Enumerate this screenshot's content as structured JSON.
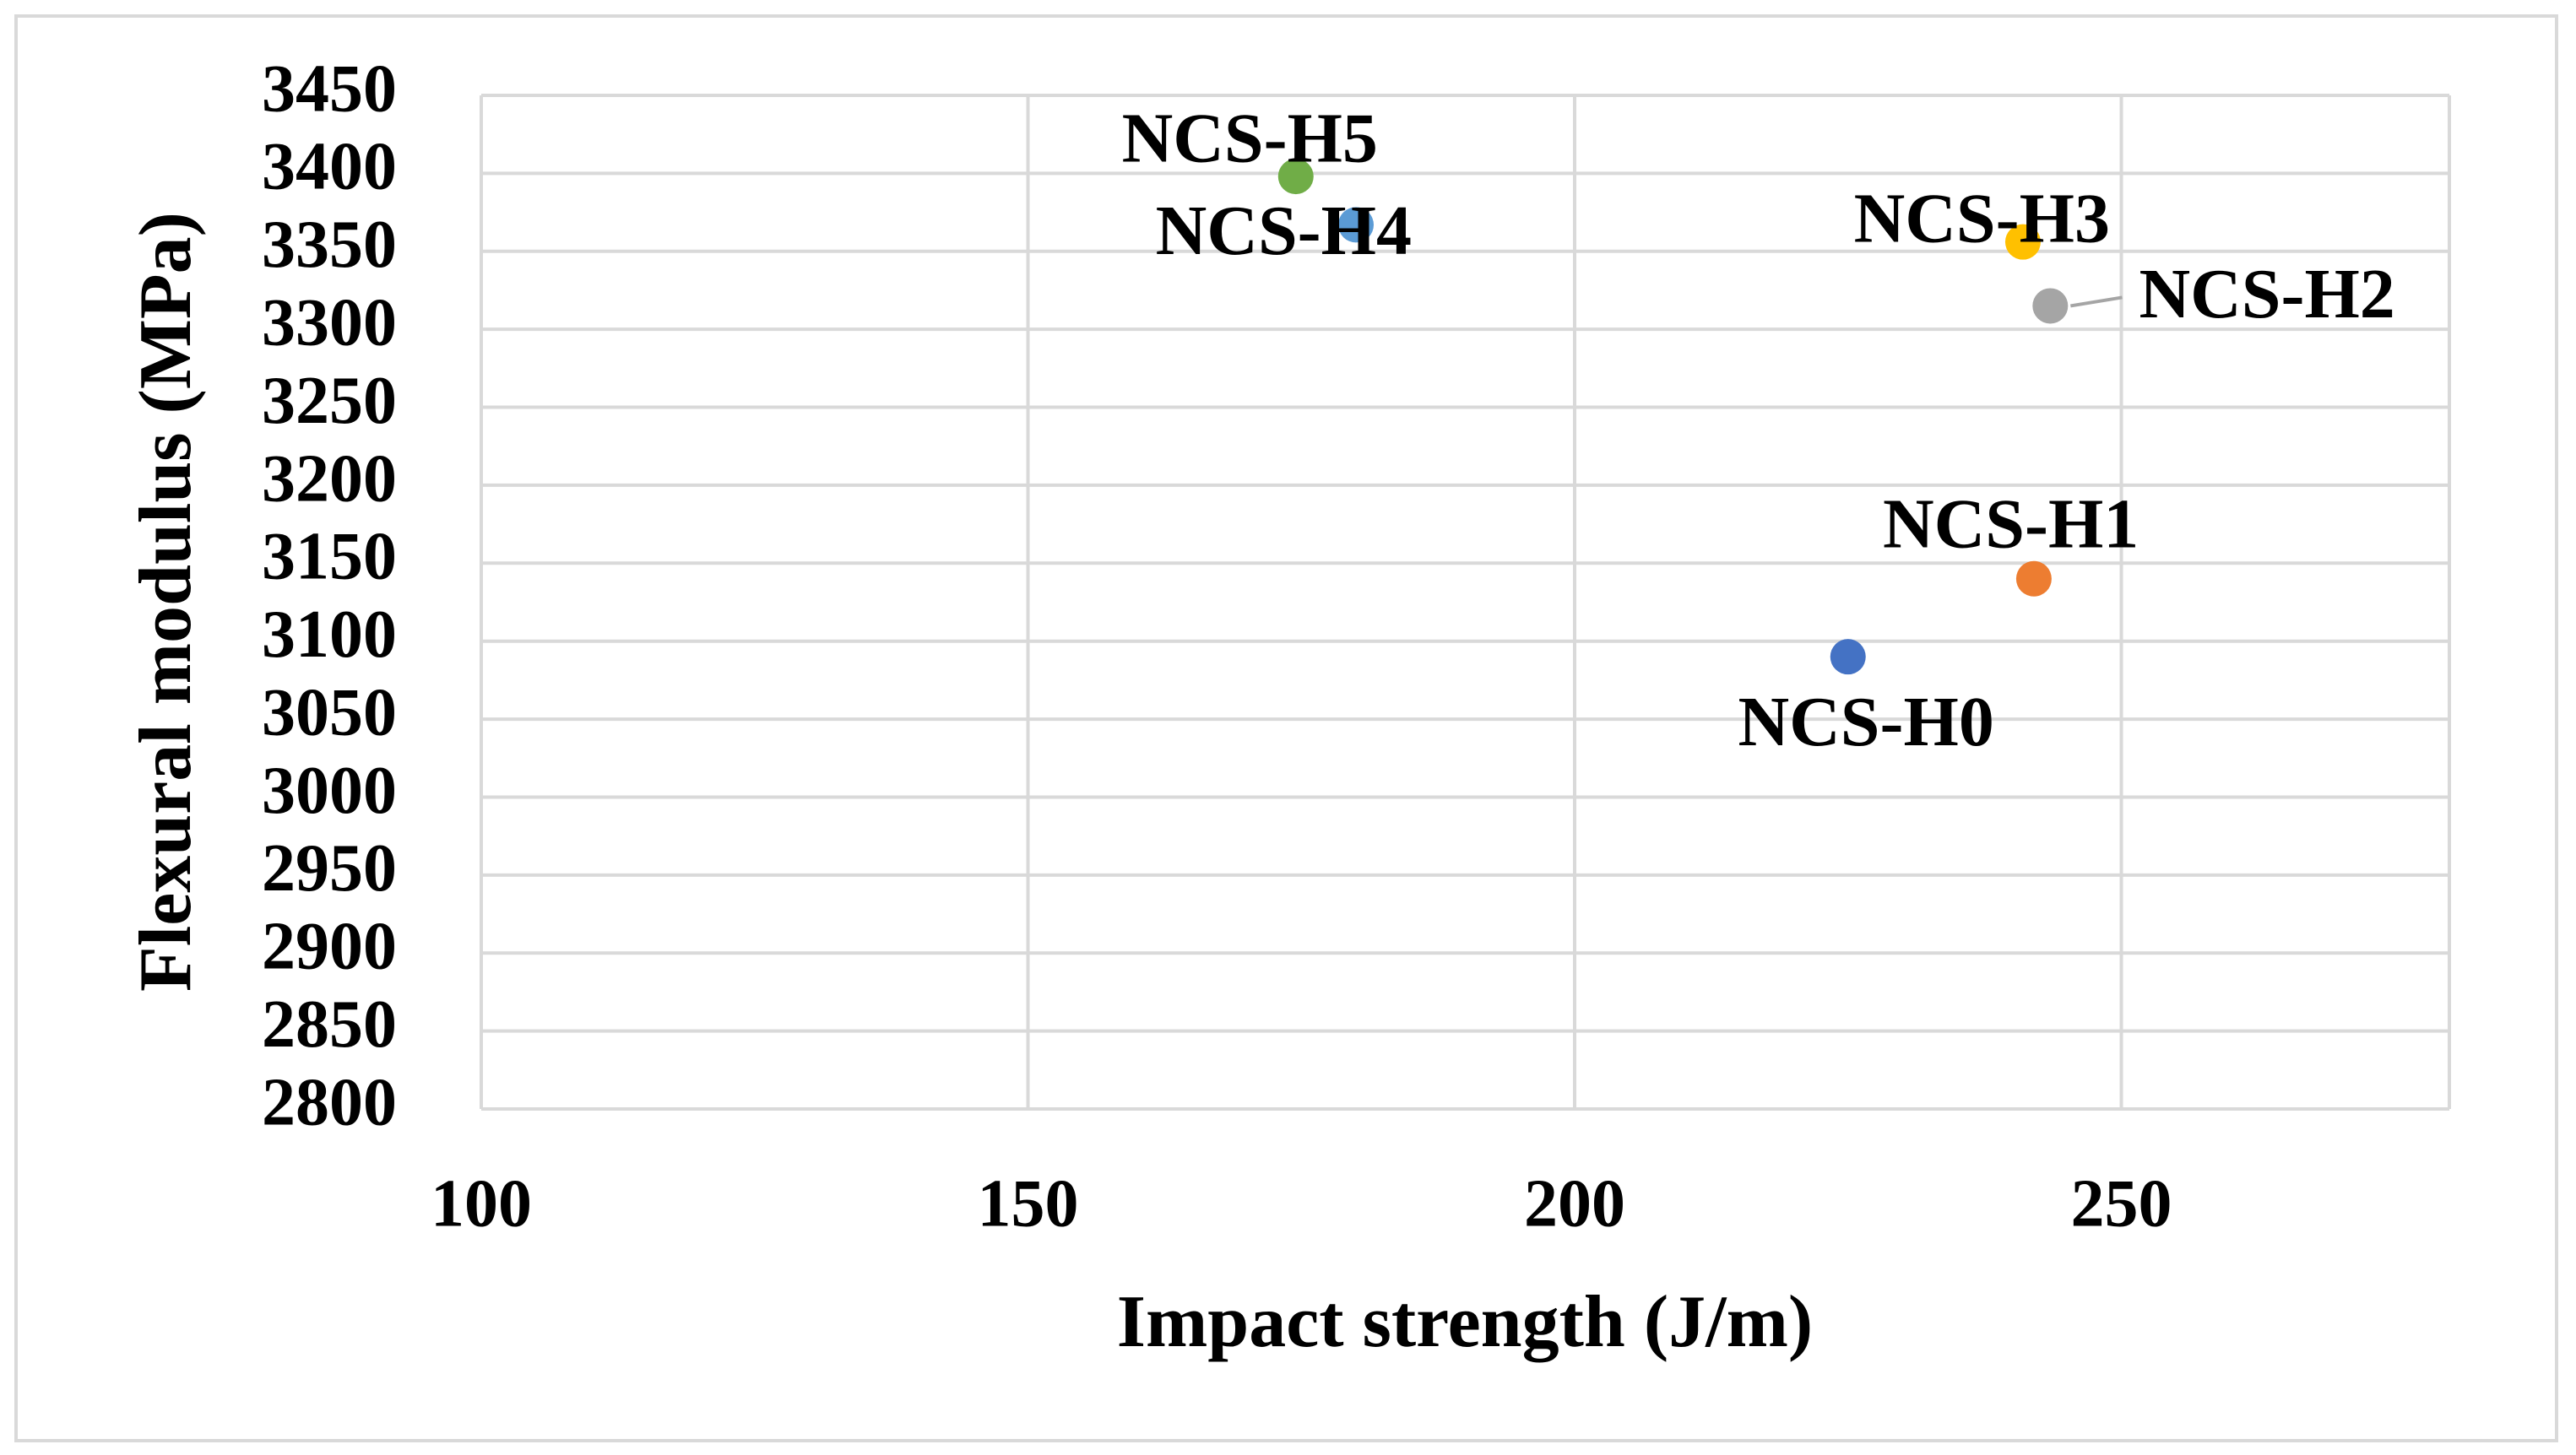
{
  "chart_data": {
    "type": "scatter",
    "x_label": "Impact strength (J/m)",
    "y_label": "Flexural modulus (MPa)",
    "xlim": [
      100,
      280
    ],
    "xticks": [
      100,
      150,
      200,
      250
    ],
    "ylim": [
      2800,
      3450
    ],
    "yticks": [
      2800,
      2850,
      2900,
      2950,
      3000,
      3050,
      3100,
      3150,
      3200,
      3250,
      3300,
      3350,
      3400,
      3450
    ],
    "grid": true,
    "series": [
      {
        "name": "NCS-H0",
        "color": "#4472c4",
        "x": [
          225
        ],
        "values": [
          3090
        ]
      },
      {
        "name": "NCS-H1",
        "color": "#ed7d31",
        "x": [
          242
        ],
        "values": [
          3140
        ]
      },
      {
        "name": "NCS-H2",
        "color": "#a5a5a5",
        "x": [
          243.5
        ],
        "values": [
          3315
        ]
      },
      {
        "name": "NCS-H3",
        "color": "#ffc000",
        "x": [
          241
        ],
        "values": [
          3356
        ]
      },
      {
        "name": "NCS-H4",
        "color": "#5b9bd5",
        "x": [
          180
        ],
        "values": [
          3367
        ]
      },
      {
        "name": "NCS-H5",
        "color": "#70ad47",
        "x": [
          174.5
        ],
        "values": [
          3398
        ]
      }
    ]
  }
}
